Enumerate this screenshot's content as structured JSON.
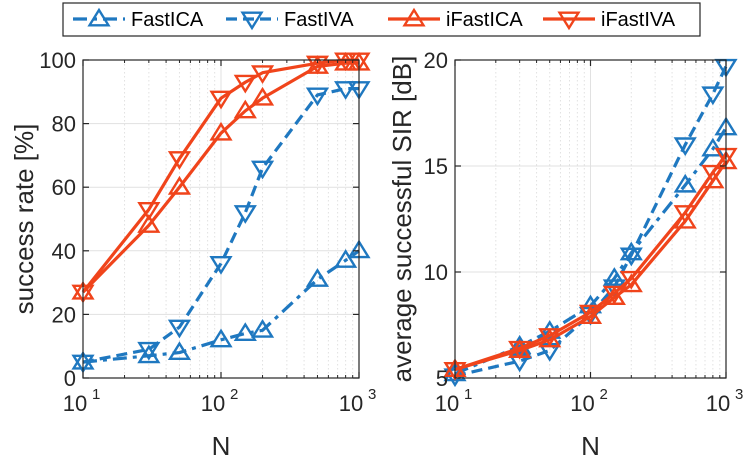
{
  "colors": {
    "ica": "#1f78c0",
    "iva": "#1f78c0",
    "iica": "#f0441b",
    "iiva": "#f0441b",
    "grid": "#e1e1e1",
    "axis": "#262626"
  },
  "legend": {
    "position": "top",
    "entries": [
      {
        "label": "FastICA",
        "marker": "triangle-up",
        "style": "dash-dot",
        "color": "#1f78c0"
      },
      {
        "label": "FastIVA",
        "marker": "triangle-down",
        "style": "dashed",
        "color": "#1f78c0"
      },
      {
        "label": "iFastICA",
        "marker": "triangle-up",
        "style": "solid",
        "color": "#f0441b"
      },
      {
        "label": "iFastIVA",
        "marker": "triangle-down",
        "style": "solid",
        "color": "#f0441b"
      }
    ]
  },
  "chart_data": [
    {
      "type": "line",
      "xscale": "log",
      "xlabel": "N",
      "ylabel": "success rate [%]",
      "xlim": [
        10,
        1000
      ],
      "ylim": [
        0,
        100
      ],
      "yticks": [
        0,
        20,
        40,
        60,
        80,
        100
      ],
      "grid": true,
      "x": [
        10,
        30,
        50,
        100,
        150,
        200,
        500,
        800,
        1000
      ],
      "series": [
        {
          "name": "FastICA",
          "values": [
            5,
            7,
            8,
            12,
            14,
            15,
            31,
            37,
            40
          ]
        },
        {
          "name": "FastIVA",
          "values": [
            5,
            9,
            16,
            36,
            52,
            66,
            89,
            91,
            91
          ]
        },
        {
          "name": "iFastICA",
          "values": [
            27,
            48,
            60,
            77,
            84,
            88,
            98,
            99,
            99
          ]
        },
        {
          "name": "iFastIVA",
          "values": [
            27,
            53,
            69,
            88,
            93,
            96,
            99,
            100,
            100
          ]
        }
      ]
    },
    {
      "type": "line",
      "xscale": "log",
      "xlabel": "N",
      "ylabel": "average successful SIR [dB]",
      "xlim": [
        10,
        1000
      ],
      "ylim": [
        5,
        20
      ],
      "yticks": [
        5,
        10,
        15,
        20
      ],
      "grid": true,
      "x": [
        10,
        30,
        50,
        100,
        150,
        200,
        500,
        800,
        1000
      ],
      "series": [
        {
          "name": "FastICA",
          "values": [
            5.2,
            6.5,
            7.2,
            8.4,
            9.7,
            10.9,
            14.1,
            15.8,
            16.8
          ]
        },
        {
          "name": "FastIVA",
          "values": [
            5.1,
            5.8,
            6.3,
            8.0,
            9.3,
            10.8,
            16.0,
            18.4,
            19.7
          ]
        },
        {
          "name": "iFastICA",
          "values": [
            5.4,
            6.3,
            6.8,
            7.9,
            8.8,
            9.4,
            12.4,
            14.3,
            15.2
          ]
        },
        {
          "name": "iFastIVA",
          "values": [
            5.4,
            6.4,
            7.0,
            8.1,
            9.0,
            9.7,
            12.8,
            14.7,
            15.5
          ]
        }
      ]
    }
  ]
}
